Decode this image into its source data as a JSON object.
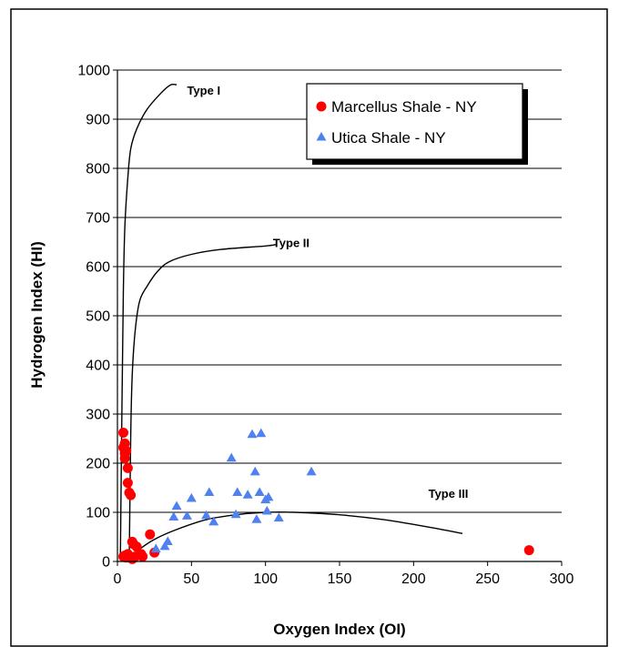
{
  "chart_data": {
    "type": "scatter",
    "xlabel": "Oxygen Index (OI)",
    "ylabel": "Hydrogen Index (HI)",
    "xlim": [
      0,
      300
    ],
    "ylim": [
      0,
      1000
    ],
    "xticks": [
      0,
      50,
      100,
      150,
      200,
      250,
      300
    ],
    "yticks": [
      0,
      100,
      200,
      300,
      400,
      500,
      600,
      700,
      800,
      900,
      1000
    ],
    "grid": "horizontal",
    "legend_position": "top-right",
    "series": [
      {
        "name": "Marcellus Shale - NY",
        "marker": "circle",
        "color": "#ff0000",
        "points": [
          [
            4,
            262
          ],
          [
            4,
            232
          ],
          [
            5,
            220
          ],
          [
            5,
            240
          ],
          [
            5,
            210
          ],
          [
            6,
            225
          ],
          [
            7,
            190
          ],
          [
            7,
            160
          ],
          [
            8,
            140
          ],
          [
            9,
            135
          ],
          [
            10,
            40
          ],
          [
            11,
            35
          ],
          [
            13,
            30
          ],
          [
            12,
            10
          ],
          [
            9,
            8
          ],
          [
            10,
            5
          ],
          [
            4,
            10
          ],
          [
            5,
            12
          ],
          [
            6,
            8
          ],
          [
            7,
            15
          ],
          [
            16,
            15
          ],
          [
            17,
            10
          ],
          [
            22,
            55
          ],
          [
            25,
            18
          ],
          [
            278,
            23
          ]
        ]
      },
      {
        "name": "Utica Shale - NY",
        "marker": "triangle",
        "color": "#4f81f0",
        "points": [
          [
            26,
            25
          ],
          [
            32,
            30
          ],
          [
            34,
            40
          ],
          [
            38,
            90
          ],
          [
            40,
            112
          ],
          [
            47,
            92
          ],
          [
            50,
            128
          ],
          [
            60,
            93
          ],
          [
            62,
            140
          ],
          [
            65,
            80
          ],
          [
            77,
            210
          ],
          [
            80,
            95
          ],
          [
            81,
            140
          ],
          [
            88,
            135
          ],
          [
            91,
            258
          ],
          [
            93,
            182
          ],
          [
            94,
            85
          ],
          [
            96,
            140
          ],
          [
            97,
            260
          ],
          [
            100,
            125
          ],
          [
            101,
            102
          ],
          [
            102,
            130
          ],
          [
            109,
            88
          ],
          [
            131,
            182
          ]
        ]
      }
    ],
    "reference_curves": [
      {
        "label": "Type I",
        "points": [
          [
            2,
            10
          ],
          [
            3,
            300
          ],
          [
            4,
            550
          ],
          [
            5,
            680
          ],
          [
            7,
            780
          ],
          [
            9,
            840
          ],
          [
            13,
            880
          ],
          [
            20,
            920
          ],
          [
            30,
            955
          ],
          [
            36,
            970
          ],
          [
            40,
            970
          ]
        ]
      },
      {
        "label": "Type II",
        "points": [
          [
            8,
            10
          ],
          [
            9,
            260
          ],
          [
            10,
            380
          ],
          [
            12,
            470
          ],
          [
            15,
            530
          ],
          [
            20,
            560
          ],
          [
            27,
            590
          ],
          [
            35,
            610
          ],
          [
            50,
            625
          ],
          [
            70,
            635
          ],
          [
            100,
            642
          ],
          [
            107,
            645
          ]
        ]
      },
      {
        "label": "Type III",
        "points": [
          [
            10,
            10
          ],
          [
            15,
            25
          ],
          [
            25,
            45
          ],
          [
            40,
            65
          ],
          [
            60,
            85
          ],
          [
            80,
            95
          ],
          [
            100,
            100
          ],
          [
            120,
            100
          ],
          [
            150,
            95
          ],
          [
            180,
            85
          ],
          [
            210,
            70
          ],
          [
            233,
            57
          ]
        ]
      }
    ],
    "curve_label_positions": [
      {
        "label": "Type I",
        "x": 47,
        "y": 950
      },
      {
        "label": "Type II",
        "x": 105,
        "y": 640
      },
      {
        "label": "Type III",
        "x": 210,
        "y": 130
      }
    ]
  }
}
